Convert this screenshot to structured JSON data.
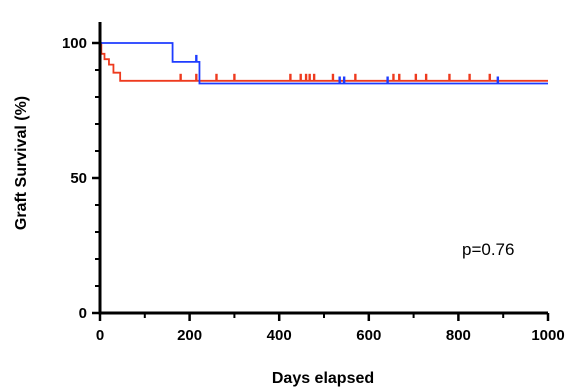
{
  "chart_data": {
    "type": "line",
    "subtype": "kaplan-meier step curve with censor marks",
    "title": "",
    "xlabel": "Days elapsed",
    "ylabel": "Graft Survival (%)",
    "xlim": [
      0,
      1000
    ],
    "ylim": [
      0,
      105
    ],
    "xticks": [
      0,
      200,
      400,
      600,
      800,
      1000
    ],
    "yticks": [
      0,
      50,
      100
    ],
    "grid": false,
    "legend": "none",
    "annotation": "p=0.76",
    "series": [
      {
        "color": "#ee3a1e",
        "steps": [
          [
            0,
            100
          ],
          [
            3,
            96
          ],
          [
            10,
            94
          ],
          [
            20,
            92
          ],
          [
            30,
            89
          ],
          [
            45,
            86
          ],
          [
            1000,
            86
          ]
        ],
        "censored": [
          180,
          215,
          260,
          300,
          425,
          448,
          460,
          468,
          478,
          520,
          570,
          655,
          668,
          705,
          728,
          780,
          825,
          870
        ]
      },
      {
        "color": "#1e3cff",
        "steps": [
          [
            0,
            100
          ],
          [
            162,
            100
          ],
          [
            162,
            93
          ],
          [
            222,
            93
          ],
          [
            222,
            85
          ],
          [
            1000,
            85
          ]
        ],
        "censored": [
          215,
          535,
          545,
          642,
          888
        ]
      }
    ]
  }
}
